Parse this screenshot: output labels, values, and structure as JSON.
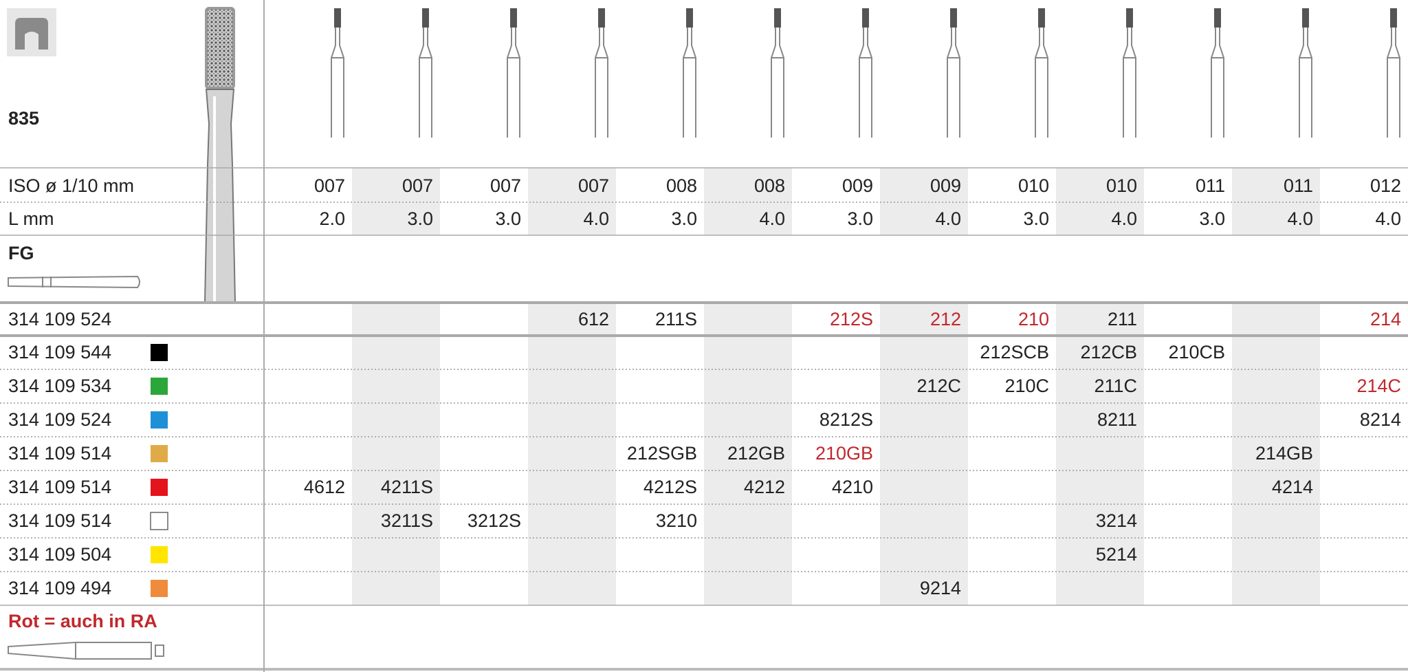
{
  "header": {
    "code": "835"
  },
  "labels": {
    "iso": "ISO ø 1/10 mm",
    "length": "L mm",
    "shank": "FG",
    "note": "Rot = auch in RA"
  },
  "table": {
    "iso": [
      "007",
      "007",
      "007",
      "007",
      "008",
      "008",
      "009",
      "009",
      "010",
      "010",
      "011",
      "011",
      "012"
    ],
    "length": [
      "2.0",
      "3.0",
      "3.0",
      "4.0",
      "3.0",
      "4.0",
      "3.0",
      "4.0",
      "3.0",
      "4.0",
      "3.0",
      "4.0",
      "4.0"
    ],
    "rows": [
      {
        "ref": "314 109 524",
        "cells": [
          null,
          null,
          null,
          "612",
          "211S",
          null,
          {
            "text": "212S",
            "color": "#c0282d"
          },
          {
            "text": "212",
            "color": "#c0282d"
          },
          {
            "text": "210",
            "color": "#c0282d"
          },
          "211",
          null,
          null,
          {
            "text": "214",
            "color": "#c0282d"
          }
        ]
      },
      {
        "ref": "314 109 544",
        "swatch": "#000000",
        "cells": [
          null,
          null,
          null,
          null,
          null,
          null,
          null,
          null,
          "212SCB",
          "212CB",
          "210CB",
          null,
          null
        ]
      },
      {
        "ref": "314 109 534",
        "swatch": "#2aa63a",
        "cells": [
          null,
          null,
          null,
          null,
          null,
          null,
          null,
          "212C",
          "210C",
          "211C",
          null,
          null,
          {
            "text": "214C",
            "color": "#c0282d"
          }
        ]
      },
      {
        "ref": "314 109 524",
        "swatch": "#1e90d8",
        "cells": [
          null,
          null,
          null,
          null,
          null,
          null,
          "8212S",
          null,
          null,
          "8211",
          null,
          null,
          "8214"
        ]
      },
      {
        "ref": "314 109 514",
        "swatch": "#dfab48",
        "cells": [
          null,
          null,
          null,
          null,
          "212SGB",
          "212GB",
          {
            "text": "210GB",
            "color": "#c0282d"
          },
          null,
          null,
          null,
          null,
          "214GB",
          null
        ]
      },
      {
        "ref": "314 109 514",
        "swatch": "#e3141c",
        "cells": [
          "4612",
          "4211S",
          null,
          null,
          "4212S",
          "4212",
          "4210",
          null,
          null,
          null,
          null,
          "4214",
          null
        ]
      },
      {
        "ref": "314 109 514",
        "swatch": "#ffffff",
        "cells": [
          null,
          "3211S",
          "3212S",
          null,
          "3210",
          null,
          null,
          null,
          null,
          "3214",
          null,
          null,
          null
        ]
      },
      {
        "ref": "314 109 504",
        "swatch": "#ffe500",
        "cells": [
          null,
          null,
          null,
          null,
          null,
          null,
          null,
          null,
          null,
          "5214",
          null,
          null,
          null
        ]
      },
      {
        "ref": "314 109 494",
        "swatch": "#f08a3c",
        "cells": [
          null,
          null,
          null,
          null,
          null,
          null,
          null,
          "9214",
          null,
          null,
          null,
          null,
          null
        ]
      }
    ]
  }
}
